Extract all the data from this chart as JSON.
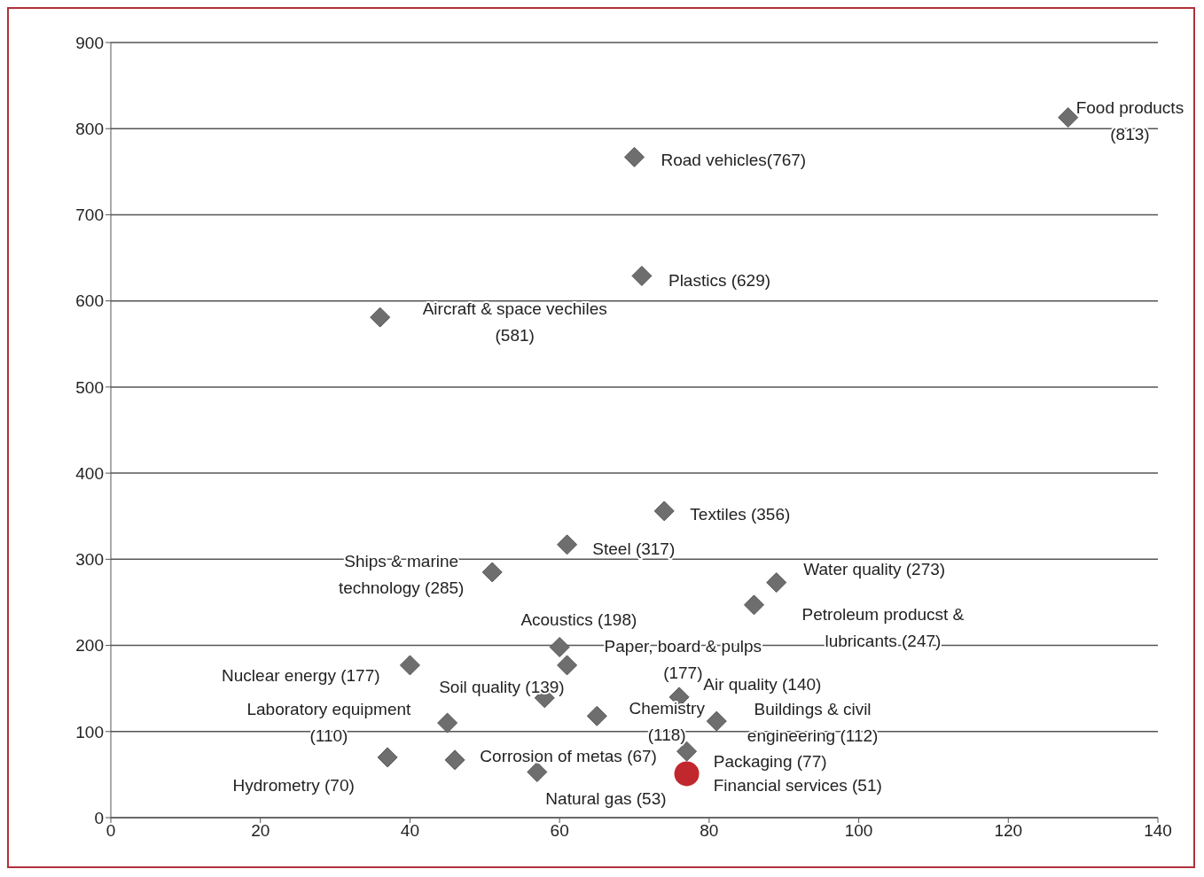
{
  "chart_data": {
    "type": "scatter",
    "series": [
      {
        "color": "#6e6e6e",
        "marker": "diamond",
        "x": [
          128,
          70,
          71,
          36,
          74,
          61,
          51,
          89,
          86,
          60,
          61,
          40,
          76,
          58,
          65,
          81,
          45,
          77,
          37,
          46,
          57
        ],
        "values": [
          813,
          767,
          629,
          581,
          356,
          317,
          285,
          273,
          247,
          198,
          177,
          177,
          140,
          139,
          118,
          112,
          110,
          77,
          70,
          67,
          53
        ]
      },
      {
        "color": "#c0282d",
        "marker": "circle",
        "x": [
          77
        ],
        "values": [
          51
        ]
      }
    ],
    "annotations": [
      {
        "text": "Food products\n(813)",
        "x": 128,
        "y": 813
      },
      {
        "text": "Road vehicles(767)",
        "x": 70,
        "y": 767
      },
      {
        "text": "Plastics (629)",
        "x": 71,
        "y": 629
      },
      {
        "text": "Aircraft & space vechiles\n(581)",
        "x": 36,
        "y": 581
      },
      {
        "text": "Textiles (356)",
        "x": 74,
        "y": 356
      },
      {
        "text": "Steel (317)",
        "x": 61,
        "y": 317
      },
      {
        "text": "Ships & marine\ntechnology (285)",
        "x": 51,
        "y": 285
      },
      {
        "text": "Water quality (273)",
        "x": 89,
        "y": 273
      },
      {
        "text": "Petroleum producst &\nlubricants (247)",
        "x": 86,
        "y": 247
      },
      {
        "text": "Acoustics (198)",
        "x": 60,
        "y": 198
      },
      {
        "text": "Paper, board & pulps\n(177)",
        "x": 61,
        "y": 177
      },
      {
        "text": "Nuclear energy (177)",
        "x": 40,
        "y": 177
      },
      {
        "text": "Air quality (140)",
        "x": 76,
        "y": 140
      },
      {
        "text": "Soil quality (139)",
        "x": 58,
        "y": 139
      },
      {
        "text": "Chemistry\n(118)",
        "x": 65,
        "y": 118
      },
      {
        "text": "Buildings & civil\nengineering (112)",
        "x": 81,
        "y": 112
      },
      {
        "text": "Laboratory equipment\n(110)",
        "x": 45,
        "y": 110
      },
      {
        "text": "Packaging (77)",
        "x": 77,
        "y": 77
      },
      {
        "text": "Hydrometry (70)",
        "x": 37,
        "y": 70
      },
      {
        "text": "Corrosion of metas (67)",
        "x": 46,
        "y": 67
      },
      {
        "text": "Natural gas (53)",
        "x": 57,
        "y": 53
      },
      {
        "text": "Financial services (51)",
        "x": 77,
        "y": 51
      }
    ],
    "xlim": [
      0,
      140
    ],
    "xticks": [
      0,
      20,
      40,
      60,
      80,
      100,
      120,
      140
    ],
    "ylim": [
      0,
      900
    ],
    "yticks": [
      0,
      100,
      200,
      300,
      400,
      500,
      600,
      700,
      800,
      900
    ],
    "grid": "y"
  }
}
